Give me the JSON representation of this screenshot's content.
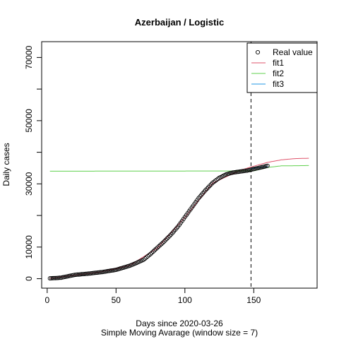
{
  "chart_data": {
    "type": "scatter",
    "title": "Azerbaijan / Logistic",
    "xlabel": "Days since 2020-03-26",
    "subtitle": "Simple Moving Avarage (window size = 7)",
    "ylabel": "Daily cases",
    "xlim": [
      -4,
      196
    ],
    "ylim": [
      -3000,
      75000
    ],
    "x_ticks": [
      0,
      50,
      100,
      150
    ],
    "y_ticks": [
      0,
      10000,
      20000,
      30000,
      40000,
      50000,
      60000,
      70000
    ],
    "y_tick_labels_shown": [
      "0",
      "10000",
      "30000",
      "50000",
      "70000"
    ],
    "vline_x": 148,
    "legend_position": "top-right",
    "legend": [
      {
        "label": "Real value",
        "kind": "point",
        "color": "#000000"
      },
      {
        "label": "fit1",
        "kind": "line",
        "color": "#DF536B"
      },
      {
        "label": "fit2",
        "kind": "line",
        "color": "#61D04F"
      },
      {
        "label": "fit3",
        "kind": "line",
        "color": "#2297E6"
      }
    ],
    "real_value_curve": {
      "description_points_x": [
        2,
        10,
        20,
        30,
        40,
        50,
        60,
        65,
        70,
        75,
        80,
        85,
        90,
        95,
        100,
        105,
        110,
        115,
        120,
        125,
        130,
        135,
        140,
        145,
        150,
        155,
        160
      ],
      "y": [
        100,
        300,
        1200,
        1600,
        2100,
        2800,
        4100,
        5000,
        6000,
        7800,
        9800,
        11800,
        14000,
        16500,
        19500,
        22500,
        25500,
        28000,
        30300,
        31900,
        33000,
        33600,
        33900,
        34200,
        34700,
        35200,
        35700
      ],
      "x_start": 2,
      "x_end": 160
    },
    "series": [
      {
        "name": "fit1",
        "color": "#DF536B",
        "x": [
          2,
          20,
          40,
          60,
          80,
          100,
          120,
          140,
          150,
          160,
          170,
          180,
          190
        ],
        "y": [
          100,
          1100,
          2200,
          4200,
          9700,
          19400,
          30200,
          34300,
          35600,
          36800,
          37600,
          38000,
          38100
        ]
      },
      {
        "name": "fit2",
        "color": "#61D04F",
        "x": [
          2,
          150,
          160,
          170,
          190
        ],
        "y": [
          34000,
          34100,
          35200,
          35700,
          35800
        ]
      },
      {
        "name": "fit3",
        "color": "#2297E6",
        "x": [
          148,
          155,
          160
        ],
        "y": [
          34900,
          35200,
          35500
        ]
      }
    ]
  }
}
